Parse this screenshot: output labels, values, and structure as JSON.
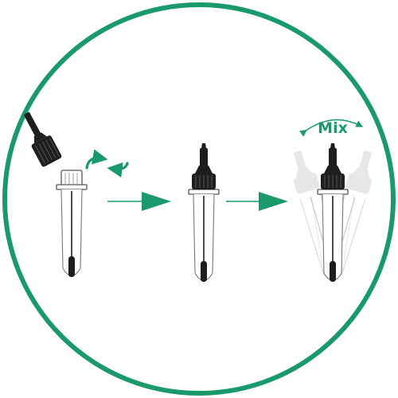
{
  "illustration": {
    "steps": [
      {
        "id": "step-1",
        "action": "twist",
        "text": ""
      },
      {
        "id": "step-2",
        "action": "closed",
        "text": ""
      },
      {
        "id": "step-3",
        "action": "mix",
        "text": "Mix"
      }
    ],
    "colors": {
      "accent": "#1a9a6a",
      "cap": "#1e1e1e",
      "outline": "#555555",
      "faded": "#d4d4d4",
      "background": "#ffffff"
    },
    "icons": [
      "rotate-arrows-icon",
      "right-arrow-icon",
      "curved-double-arrow-icon"
    ]
  }
}
